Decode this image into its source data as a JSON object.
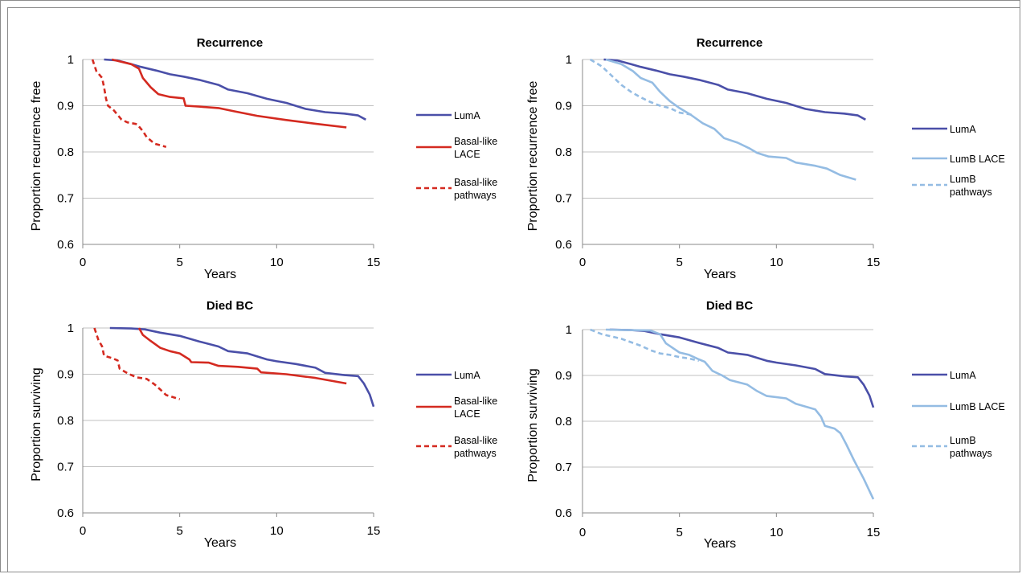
{
  "colors": {
    "luma": "#4a4fa8",
    "basal": "#d42a20",
    "lumb": "#94bce3",
    "grid": "#c0c0c0"
  },
  "chart_data": [
    {
      "type": "line",
      "title": "Recurrence",
      "xlabel": "Years",
      "ylabel": "Proportion recurrence free",
      "xlim": [
        0,
        15
      ],
      "ylim": [
        0.6,
        1
      ],
      "xticks": [
        "0",
        "5",
        "10",
        "15"
      ],
      "yticks": [
        "0.6",
        "0.7",
        "0.8",
        "0.9",
        "1"
      ],
      "grid": "horizontal",
      "legend_position": "right",
      "series": [
        {
          "name": "LumA",
          "color": "#4a4fa8",
          "dash": false,
          "points": [
            [
              1.1,
              1.0
            ],
            [
              1.8,
              0.998
            ],
            [
              2.5,
              0.99
            ],
            [
              3,
              0.984
            ],
            [
              3.8,
              0.976
            ],
            [
              4.5,
              0.968
            ],
            [
              5.2,
              0.963
            ],
            [
              6,
              0.956
            ],
            [
              7,
              0.945
            ],
            [
              7.5,
              0.935
            ],
            [
              8.5,
              0.927
            ],
            [
              9.5,
              0.915
            ],
            [
              10.5,
              0.906
            ],
            [
              11.5,
              0.893
            ],
            [
              12.5,
              0.886
            ],
            [
              13.5,
              0.883
            ],
            [
              14.2,
              0.879
            ],
            [
              14.6,
              0.87
            ]
          ]
        },
        {
          "name": "Basal-like LACE",
          "color": "#d42a20",
          "dash": false,
          "points": [
            [
              1.5,
              1.0
            ],
            [
              2.5,
              0.99
            ],
            [
              2.9,
              0.98
            ],
            [
              3.1,
              0.96
            ],
            [
              3.5,
              0.94
            ],
            [
              3.9,
              0.925
            ],
            [
              4.5,
              0.919
            ],
            [
              5.2,
              0.916
            ],
            [
              5.3,
              0.9
            ],
            [
              6,
              0.898
            ],
            [
              7,
              0.895
            ],
            [
              7.8,
              0.888
            ],
            [
              9,
              0.878
            ],
            [
              10.5,
              0.869
            ],
            [
              12,
              0.861
            ],
            [
              13.6,
              0.853
            ]
          ]
        },
        {
          "name": "Basal-like pathways",
          "color": "#d42a20",
          "dash": true,
          "points": [
            [
              0.5,
              1.0
            ],
            [
              0.7,
              0.975
            ],
            [
              1.0,
              0.96
            ],
            [
              1.1,
              0.94
            ],
            [
              1.2,
              0.915
            ],
            [
              1.3,
              0.9
            ],
            [
              1.6,
              0.89
            ],
            [
              2,
              0.87
            ],
            [
              2.3,
              0.864
            ],
            [
              2.8,
              0.86
            ],
            [
              3.1,
              0.845
            ],
            [
              3.3,
              0.832
            ],
            [
              3.7,
              0.818
            ],
            [
              4.3,
              0.811
            ]
          ]
        }
      ],
      "legend_entries": [
        {
          "lines": [
            "LumA"
          ],
          "color": "#4a4fa8",
          "dash": false
        },
        {
          "lines": [
            "Basal-like",
            "LACE"
          ],
          "color": "#d42a20",
          "dash": false
        },
        {
          "lines": [
            "Basal-like",
            "pathways"
          ],
          "color": "#d42a20",
          "dash": true
        }
      ]
    },
    {
      "type": "line",
      "title": "Recurrence",
      "xlabel": "Years",
      "ylabel": "Proportion recurrence free",
      "xlim": [
        0,
        15
      ],
      "ylim": [
        0.6,
        1
      ],
      "xticks": [
        "0",
        "5",
        "10",
        "15"
      ],
      "yticks": [
        "0.6",
        "0.7",
        "0.8",
        "0.9",
        "1"
      ],
      "grid": "horizontal",
      "legend_position": "right",
      "series": [
        {
          "name": "LumA",
          "color": "#4a4fa8",
          "dash": false,
          "points": [
            [
              1.1,
              1.0
            ],
            [
              1.8,
              0.998
            ],
            [
              2.5,
              0.99
            ],
            [
              3,
              0.984
            ],
            [
              3.8,
              0.976
            ],
            [
              4.5,
              0.968
            ],
            [
              5.2,
              0.963
            ],
            [
              6,
              0.956
            ],
            [
              7,
              0.945
            ],
            [
              7.5,
              0.935
            ],
            [
              8.5,
              0.927
            ],
            [
              9.5,
              0.915
            ],
            [
              10.5,
              0.906
            ],
            [
              11.5,
              0.893
            ],
            [
              12.5,
              0.886
            ],
            [
              13.5,
              0.883
            ],
            [
              14.2,
              0.879
            ],
            [
              14.6,
              0.87
            ]
          ]
        },
        {
          "name": "LumB LACE",
          "color": "#94bce3",
          "dash": false,
          "points": [
            [
              1.2,
              1.0
            ],
            [
              2,
              0.99
            ],
            [
              2.6,
              0.975
            ],
            [
              3,
              0.96
            ],
            [
              3.6,
              0.95
            ],
            [
              4,
              0.93
            ],
            [
              4.5,
              0.91
            ],
            [
              5,
              0.895
            ],
            [
              5.6,
              0.88
            ],
            [
              6.2,
              0.862
            ],
            [
              6.8,
              0.85
            ],
            [
              7.3,
              0.83
            ],
            [
              8,
              0.82
            ],
            [
              8.6,
              0.808
            ],
            [
              9,
              0.798
            ],
            [
              9.6,
              0.79
            ],
            [
              10.5,
              0.787
            ],
            [
              11,
              0.777
            ],
            [
              12,
              0.77
            ],
            [
              12.6,
              0.764
            ],
            [
              13.3,
              0.75
            ],
            [
              14.1,
              0.74
            ]
          ]
        },
        {
          "name": "LumB pathways",
          "color": "#94bce3",
          "dash": true,
          "points": [
            [
              0.4,
              1.0
            ],
            [
              1,
              0.985
            ],
            [
              1.5,
              0.965
            ],
            [
              2,
              0.945
            ],
            [
              2.5,
              0.93
            ],
            [
              3,
              0.918
            ],
            [
              3.5,
              0.908
            ],
            [
              4,
              0.9
            ],
            [
              4.5,
              0.895
            ],
            [
              5,
              0.885
            ],
            [
              5.7,
              0.88
            ]
          ]
        }
      ],
      "legend_entries": [
        {
          "lines": [
            "LumA"
          ],
          "color": "#4a4fa8",
          "dash": false
        },
        {
          "lines": [
            "LumB LACE"
          ],
          "color": "#94bce3",
          "dash": false
        },
        {
          "lines": [
            "LumB",
            "pathways"
          ],
          "color": "#94bce3",
          "dash": true
        }
      ]
    },
    {
      "type": "line",
      "title": "Died BC",
      "xlabel": "Years",
      "ylabel": "Proportion surviving",
      "xlim": [
        0,
        15
      ],
      "ylim": [
        0.6,
        1
      ],
      "xticks": [
        "0",
        "5",
        "10",
        "15"
      ],
      "yticks": [
        "0.6",
        "0.7",
        "0.8",
        "0.9",
        "1"
      ],
      "grid": "horizontal",
      "legend_position": "right",
      "series": [
        {
          "name": "LumA",
          "color": "#4a4fa8",
          "dash": false,
          "points": [
            [
              1.4,
              1.0
            ],
            [
              2.5,
              0.999
            ],
            [
              3.2,
              0.997
            ],
            [
              4,
              0.99
            ],
            [
              5,
              0.983
            ],
            [
              6,
              0.971
            ],
            [
              7,
              0.96
            ],
            [
              7.5,
              0.95
            ],
            [
              8.5,
              0.945
            ],
            [
              9.5,
              0.932
            ],
            [
              10,
              0.928
            ],
            [
              11,
              0.922
            ],
            [
              12,
              0.914
            ],
            [
              12.5,
              0.903
            ],
            [
              13.5,
              0.898
            ],
            [
              14.2,
              0.896
            ],
            [
              14.5,
              0.88
            ],
            [
              14.8,
              0.856
            ],
            [
              15,
              0.83
            ]
          ]
        },
        {
          "name": "Basal-like LACE",
          "color": "#d42a20",
          "dash": false,
          "points": [
            [
              2.9,
              1.0
            ],
            [
              3.1,
              0.985
            ],
            [
              3.5,
              0.972
            ],
            [
              4,
              0.957
            ],
            [
              4.5,
              0.95
            ],
            [
              5,
              0.945
            ],
            [
              5.5,
              0.932
            ],
            [
              5.6,
              0.926
            ],
            [
              6.5,
              0.925
            ],
            [
              7,
              0.918
            ],
            [
              8,
              0.916
            ],
            [
              9,
              0.912
            ],
            [
              9.2,
              0.904
            ],
            [
              10.5,
              0.9
            ],
            [
              12,
              0.892
            ],
            [
              13.6,
              0.88
            ]
          ]
        },
        {
          "name": "Basal-like pathways",
          "color": "#d42a20",
          "dash": true,
          "points": [
            [
              0.6,
              1.0
            ],
            [
              0.8,
              0.975
            ],
            [
              1.0,
              0.96
            ],
            [
              1.1,
              0.94
            ],
            [
              1.5,
              0.935
            ],
            [
              1.8,
              0.93
            ],
            [
              1.9,
              0.912
            ],
            [
              2.4,
              0.9
            ],
            [
              2.8,
              0.893
            ],
            [
              3.3,
              0.89
            ],
            [
              3.7,
              0.878
            ],
            [
              4,
              0.867
            ],
            [
              4.3,
              0.855
            ],
            [
              5,
              0.846
            ]
          ]
        }
      ],
      "legend_entries": [
        {
          "lines": [
            "LumA"
          ],
          "color": "#4a4fa8",
          "dash": false
        },
        {
          "lines": [
            "Basal-like",
            "LACE"
          ],
          "color": "#d42a20",
          "dash": false
        },
        {
          "lines": [
            "Basal-like",
            "pathways"
          ],
          "color": "#d42a20",
          "dash": true
        }
      ]
    },
    {
      "type": "line",
      "title": "Died BC",
      "xlabel": "Years",
      "ylabel": "Proportion surviving",
      "xlim": [
        0,
        15
      ],
      "ylim": [
        0.6,
        1
      ],
      "xticks": [
        "0",
        "5",
        "10",
        "15"
      ],
      "yticks": [
        "0.6",
        "0.7",
        "0.8",
        "0.9",
        "1"
      ],
      "grid": "horizontal",
      "legend_position": "right",
      "series": [
        {
          "name": "LumA",
          "color": "#4a4fa8",
          "dash": false,
          "points": [
            [
              1.4,
              1.0
            ],
            [
              2.5,
              0.999
            ],
            [
              3.2,
              0.997
            ],
            [
              4,
              0.99
            ],
            [
              5,
              0.983
            ],
            [
              6,
              0.971
            ],
            [
              7,
              0.96
            ],
            [
              7.5,
              0.95
            ],
            [
              8.5,
              0.945
            ],
            [
              9.5,
              0.932
            ],
            [
              10,
              0.928
            ],
            [
              11,
              0.922
            ],
            [
              12,
              0.914
            ],
            [
              12.5,
              0.903
            ],
            [
              13.5,
              0.898
            ],
            [
              14.2,
              0.896
            ],
            [
              14.5,
              0.88
            ],
            [
              14.8,
              0.856
            ],
            [
              15,
              0.83
            ]
          ]
        },
        {
          "name": "LumB LACE",
          "color": "#94bce3",
          "dash": false,
          "points": [
            [
              1.2,
              1.0
            ],
            [
              3.5,
              0.998
            ],
            [
              4,
              0.99
            ],
            [
              4.3,
              0.97
            ],
            [
              5,
              0.95
            ],
            [
              5.5,
              0.945
            ],
            [
              6,
              0.935
            ],
            [
              6.3,
              0.93
            ],
            [
              6.7,
              0.91
            ],
            [
              7.2,
              0.9
            ],
            [
              7.6,
              0.89
            ],
            [
              8.5,
              0.88
            ],
            [
              9,
              0.866
            ],
            [
              9.5,
              0.855
            ],
            [
              10.5,
              0.85
            ],
            [
              11,
              0.838
            ],
            [
              12,
              0.826
            ],
            [
              12.3,
              0.81
            ],
            [
              12.5,
              0.79
            ],
            [
              13,
              0.784
            ],
            [
              13.3,
              0.774
            ],
            [
              13.6,
              0.75
            ],
            [
              14,
              0.715
            ],
            [
              14.5,
              0.675
            ],
            [
              15,
              0.63
            ]
          ]
        },
        {
          "name": "LumB pathways",
          "color": "#94bce3",
          "dash": true,
          "points": [
            [
              0.4,
              1.0
            ],
            [
              1,
              0.99
            ],
            [
              2,
              0.98
            ],
            [
              3,
              0.965
            ],
            [
              3.5,
              0.955
            ],
            [
              4,
              0.948
            ],
            [
              4.5,
              0.945
            ],
            [
              5,
              0.94
            ],
            [
              5.5,
              0.937
            ],
            [
              6,
              0.932
            ]
          ]
        }
      ],
      "legend_entries": [
        {
          "lines": [
            "LumA"
          ],
          "color": "#4a4fa8",
          "dash": false
        },
        {
          "lines": [
            "LumB LACE"
          ],
          "color": "#94bce3",
          "dash": false
        },
        {
          "lines": [
            "LumB",
            "pathways"
          ],
          "color": "#94bce3",
          "dash": true
        }
      ]
    }
  ]
}
